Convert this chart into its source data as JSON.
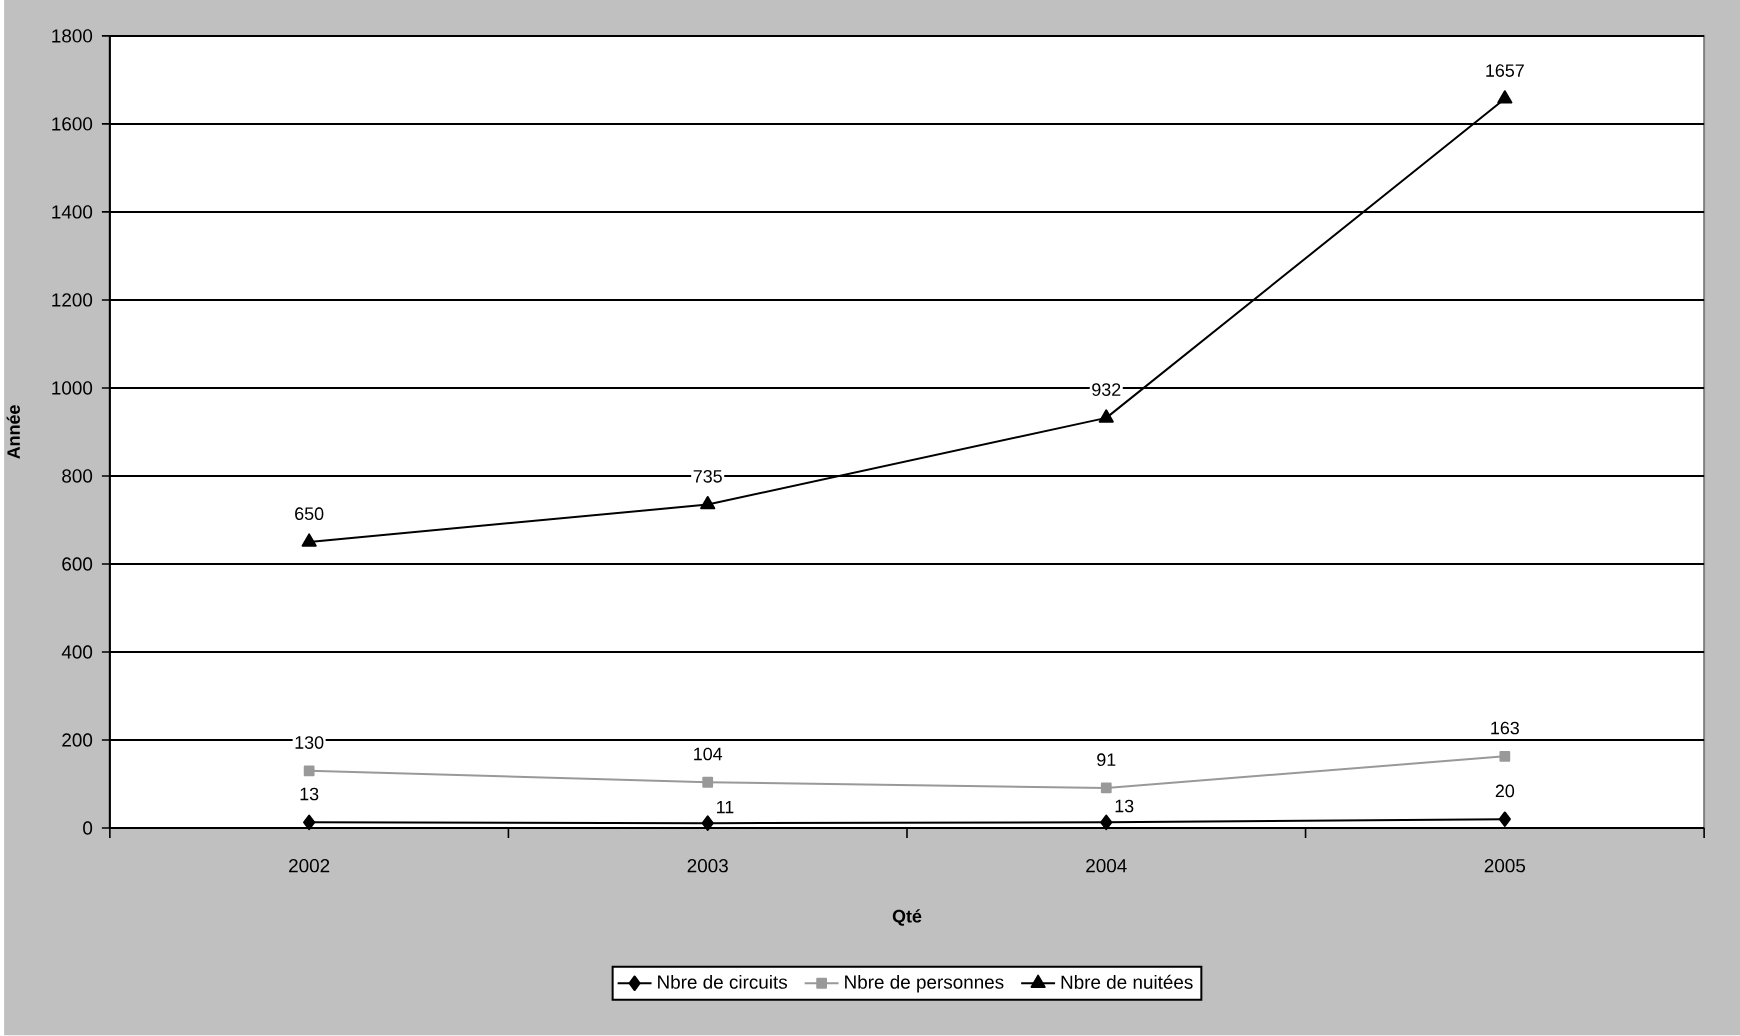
{
  "chart_data": {
    "type": "line",
    "xlabel": "Qté",
    "ylabel": "Année",
    "categories": [
      "2002",
      "2003",
      "2004",
      "2005"
    ],
    "ylim": [
      0,
      1800
    ],
    "yticks": [
      0,
      200,
      400,
      600,
      800,
      1000,
      1200,
      1400,
      1600,
      1800
    ],
    "grid": "y",
    "legend": "bottom",
    "data_labels": true,
    "series": [
      {
        "name": "Nbre de circuits",
        "color": "#000000",
        "marker": "diamond",
        "values": [
          13,
          11,
          13,
          20
        ]
      },
      {
        "name": "Nbre de personnes",
        "color": "#999999",
        "marker": "square",
        "values": [
          130,
          104,
          91,
          163
        ]
      },
      {
        "name": "Nbre de nuitées",
        "color": "#000000",
        "marker": "triangle",
        "values": [
          650,
          735,
          932,
          1657
        ]
      }
    ]
  }
}
